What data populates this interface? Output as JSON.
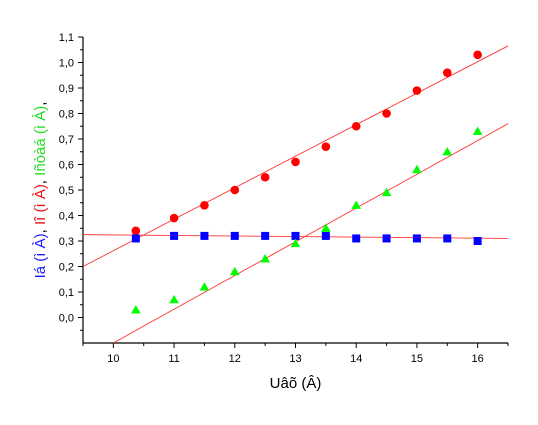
{
  "chart_data": {
    "type": "scatter",
    "xlabel": "Uâõ (Â)",
    "ylabel_parts": [
      {
        "text": "Iá (ì À)",
        "color": "#1a1aff"
      },
      {
        "text": ", ",
        "color": "#000000"
      },
      {
        "text": "Iî (ì À)",
        "color": "#ee1111"
      },
      {
        "text": ", ",
        "color": "#000000"
      },
      {
        "text": "Iñòàá (ì À)",
        "color": "#22dd22"
      },
      {
        "text": ",",
        "color": "#000000"
      }
    ],
    "xlim": [
      9.5,
      16.5
    ],
    "ylim": [
      -0.1,
      1.1
    ],
    "x_ticks": [
      10,
      11,
      12,
      13,
      14,
      15,
      16
    ],
    "x_tick_labels": [
      "10",
      "11",
      "12",
      "13",
      "14",
      "15",
      "16"
    ],
    "y_ticks": [
      0.0,
      0.1,
      0.2,
      0.3,
      0.4,
      0.5,
      0.6,
      0.7,
      0.8,
      0.9,
      1.0,
      1.1
    ],
    "y_tick_labels": [
      "0,0",
      "0,1",
      "0,2",
      "0,3",
      "0,4",
      "0,5",
      "0,6",
      "0,7",
      "0,8",
      "0,9",
      "1,0",
      "1,1"
    ],
    "grid": false,
    "series": [
      {
        "marker": "circle",
        "color": "#ff0000",
        "x": [
          10.37,
          11.0,
          11.5,
          12.0,
          12.5,
          13.0,
          13.5,
          14.0,
          14.5,
          15.0,
          15.5,
          16.0
        ],
        "y": [
          0.34,
          0.39,
          0.44,
          0.5,
          0.55,
          0.61,
          0.67,
          0.75,
          0.8,
          0.89,
          0.96,
          1.03
        ],
        "fit": {
          "x": [
            9.5,
            16.5
          ],
          "y": [
            0.2,
            1.065
          ]
        }
      },
      {
        "marker": "square",
        "color": "#0000ff",
        "x": [
          10.37,
          11.0,
          11.5,
          12.0,
          12.5,
          13.0,
          13.5,
          14.0,
          14.5,
          15.0,
          15.5,
          16.0
        ],
        "y": [
          0.31,
          0.32,
          0.32,
          0.32,
          0.32,
          0.32,
          0.32,
          0.31,
          0.31,
          0.31,
          0.31,
          0.3
        ],
        "fit": {
          "x": [
            9.5,
            16.5
          ],
          "y": [
            0.325,
            0.31
          ]
        }
      },
      {
        "marker": "triangle",
        "color": "#00ff00",
        "x": [
          10.37,
          11.0,
          11.5,
          12.0,
          12.5,
          13.0,
          13.5,
          14.0,
          14.5,
          15.0,
          15.5,
          16.0
        ],
        "y": [
          0.03,
          0.07,
          0.12,
          0.18,
          0.23,
          0.29,
          0.35,
          0.44,
          0.49,
          0.58,
          0.65,
          0.73
        ],
        "fit": {
          "x": [
            10.0,
            16.5
          ],
          "y": [
            -0.1,
            0.76
          ]
        }
      }
    ],
    "fit_line_color": "#ff3333"
  }
}
